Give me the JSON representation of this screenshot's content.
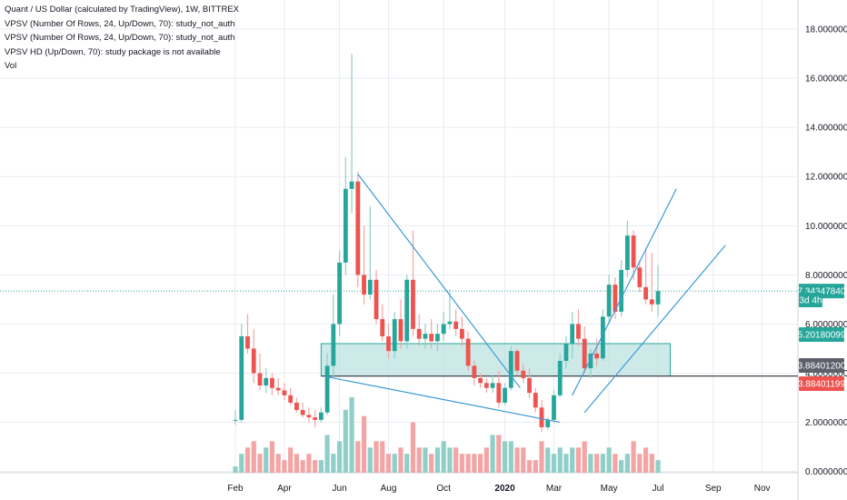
{
  "legend": {
    "title": "Quant / US Dollar (calculated by TradingView), 1W, BITTREX",
    "indicators": [
      "VPSV (Number Of Rows, 24, Up/Down, 70): study_not_auth",
      "VPSV (Number Of Rows, 24, Up/Down, 70): study_not_auth",
      "VPSV HD (Up/Down, 70): study package is not available",
      "Vol"
    ]
  },
  "colors": {
    "up": "#26a69a",
    "down": "#ef5350",
    "vol_up": "#8fcfc8",
    "vol_down": "#f2a5a4",
    "trendline": "#3d9ad6",
    "zone_fill": "#b2dfdb",
    "current_line": "#26a69a",
    "grid": "#e8ecf2",
    "support_line": "#434651"
  },
  "chart_data": {
    "type": "candlestick",
    "title": "Quant / US Dollar (calculated by TradingView), 1W, BITTREX",
    "y_ticks": [
      "18.00000000",
      "16.00000000",
      "14.00000000",
      "12.00000000",
      "10.00000000",
      "8.00000000",
      "6.00000000",
      "4.00000000",
      "2.00000000",
      "0.00000000"
    ],
    "y_tick_values": [
      18,
      16,
      14,
      12,
      10,
      8,
      6,
      4,
      2,
      0
    ],
    "ylim": [
      -0.8,
      18.6
    ],
    "x_ticks": [
      "Feb",
      "Apr",
      "Jun",
      "Aug",
      "Oct",
      "2020",
      "Mar",
      "May",
      "Jul",
      "Sep",
      "Nov"
    ],
    "x_tick_weeks": [
      0,
      8,
      17,
      25,
      34,
      44,
      52,
      61,
      69,
      78,
      86
    ],
    "x_tick_bold": [
      "2020"
    ],
    "first_week": "2019-02-11",
    "price_tags": [
      {
        "label": "7.34347840",
        "value": 7.3434784,
        "kind": "current"
      },
      {
        "label": "3d 4h",
        "value": 6.2,
        "kind": "countdown"
      },
      {
        "label": "5.20180099",
        "value": 5.20180099,
        "kind": "zone"
      },
      {
        "label": "3.88401200",
        "value": 3.884012,
        "kind": "support"
      },
      {
        "label": "3.88401199",
        "value": 3.88401199,
        "kind": "support_red"
      }
    ],
    "current_price": 7.3434784,
    "support_level": 3.884012,
    "zone": {
      "low": 3.884012,
      "high": 5.20180099,
      "from_week": 14,
      "to_week": 71
    },
    "trendlines": [
      {
        "from": [
          20,
          12.1
        ],
        "to": [
          46.5,
          3.4
        ]
      },
      {
        "from": [
          15,
          3.85
        ],
        "to": [
          53,
          2.0
        ]
      },
      {
        "from": [
          55,
          3.1
        ],
        "to": [
          72,
          11.5
        ]
      },
      {
        "from": [
          57,
          2.4
        ],
        "to": [
          80,
          9.2
        ]
      }
    ],
    "candles": [
      {
        "o": 2.1,
        "h": 2.5,
        "l": 1.9,
        "c": 2.1
      },
      {
        "o": 2.1,
        "h": 6.0,
        "l": 2.0,
        "c": 5.5
      },
      {
        "o": 5.5,
        "h": 6.4,
        "l": 4.8,
        "c": 5.0
      },
      {
        "o": 5.0,
        "h": 5.8,
        "l": 3.6,
        "c": 4.0
      },
      {
        "o": 4.0,
        "h": 4.8,
        "l": 3.3,
        "c": 3.5
      },
      {
        "o": 3.5,
        "h": 4.2,
        "l": 3.2,
        "c": 3.8
      },
      {
        "o": 3.8,
        "h": 4.0,
        "l": 3.1,
        "c": 3.4
      },
      {
        "o": 3.4,
        "h": 3.8,
        "l": 3.1,
        "c": 3.3
      },
      {
        "o": 3.3,
        "h": 3.6,
        "l": 2.9,
        "c": 3.1
      },
      {
        "o": 3.1,
        "h": 3.4,
        "l": 2.7,
        "c": 2.8
      },
      {
        "o": 2.8,
        "h": 3.0,
        "l": 2.4,
        "c": 2.5
      },
      {
        "o": 2.5,
        "h": 2.8,
        "l": 2.2,
        "c": 2.3
      },
      {
        "o": 2.3,
        "h": 2.6,
        "l": 2.0,
        "c": 2.2
      },
      {
        "o": 2.2,
        "h": 2.5,
        "l": 1.8,
        "c": 2.1
      },
      {
        "o": 2.1,
        "h": 2.6,
        "l": 2.0,
        "c": 2.4
      },
      {
        "o": 2.4,
        "h": 4.8,
        "l": 2.3,
        "c": 4.3
      },
      {
        "o": 4.3,
        "h": 7.2,
        "l": 3.8,
        "c": 6.0
      },
      {
        "o": 6.0,
        "h": 9.0,
        "l": 5.5,
        "c": 8.5
      },
      {
        "o": 8.5,
        "h": 12.8,
        "l": 8.0,
        "c": 11.5
      },
      {
        "o": 11.5,
        "h": 17.0,
        "l": 10.5,
        "c": 11.8
      },
      {
        "o": 11.8,
        "h": 12.2,
        "l": 7.5,
        "c": 8.0
      },
      {
        "o": 8.0,
        "h": 10.0,
        "l": 6.8,
        "c": 7.2
      },
      {
        "o": 7.2,
        "h": 10.8,
        "l": 7.0,
        "c": 7.8
      },
      {
        "o": 7.8,
        "h": 8.2,
        "l": 6.0,
        "c": 6.2
      },
      {
        "o": 6.2,
        "h": 6.8,
        "l": 5.3,
        "c": 5.5
      },
      {
        "o": 5.5,
        "h": 6.0,
        "l": 4.6,
        "c": 4.9
      },
      {
        "o": 4.9,
        "h": 6.5,
        "l": 4.6,
        "c": 6.2
      },
      {
        "o": 6.2,
        "h": 7.0,
        "l": 5.0,
        "c": 5.3
      },
      {
        "o": 5.3,
        "h": 8.0,
        "l": 5.0,
        "c": 7.8
      },
      {
        "o": 7.8,
        "h": 9.8,
        "l": 5.5,
        "c": 5.8
      },
      {
        "o": 5.8,
        "h": 6.4,
        "l": 5.1,
        "c": 5.4
      },
      {
        "o": 5.4,
        "h": 6.0,
        "l": 5.0,
        "c": 5.6
      },
      {
        "o": 5.6,
        "h": 6.2,
        "l": 5.0,
        "c": 5.3
      },
      {
        "o": 5.3,
        "h": 6.0,
        "l": 4.9,
        "c": 5.6
      },
      {
        "o": 5.6,
        "h": 6.5,
        "l": 5.3,
        "c": 6.0
      },
      {
        "o": 6.0,
        "h": 7.4,
        "l": 5.8,
        "c": 6.1
      },
      {
        "o": 6.1,
        "h": 6.6,
        "l": 5.5,
        "c": 5.8
      },
      {
        "o": 5.8,
        "h": 6.3,
        "l": 5.1,
        "c": 5.4
      },
      {
        "o": 5.4,
        "h": 5.7,
        "l": 4.1,
        "c": 4.3
      },
      {
        "o": 4.3,
        "h": 4.5,
        "l": 3.5,
        "c": 3.8
      },
      {
        "o": 3.8,
        "h": 4.0,
        "l": 3.4,
        "c": 3.6
      },
      {
        "o": 3.6,
        "h": 3.8,
        "l": 3.2,
        "c": 3.4
      },
      {
        "o": 3.4,
        "h": 3.9,
        "l": 3.2,
        "c": 3.6
      },
      {
        "o": 3.6,
        "h": 4.1,
        "l": 2.6,
        "c": 2.8
      },
      {
        "o": 2.8,
        "h": 3.6,
        "l": 2.7,
        "c": 3.4
      },
      {
        "o": 3.4,
        "h": 5.1,
        "l": 3.3,
        "c": 4.9
      },
      {
        "o": 4.9,
        "h": 5.0,
        "l": 3.9,
        "c": 4.1
      },
      {
        "o": 4.1,
        "h": 4.4,
        "l": 3.6,
        "c": 3.8
      },
      {
        "o": 3.8,
        "h": 4.2,
        "l": 3.0,
        "c": 3.2
      },
      {
        "o": 3.2,
        "h": 3.4,
        "l": 2.4,
        "c": 2.6
      },
      {
        "o": 2.6,
        "h": 2.9,
        "l": 1.6,
        "c": 1.8
      },
      {
        "o": 1.8,
        "h": 2.2,
        "l": 1.7,
        "c": 2.1
      },
      {
        "o": 2.1,
        "h": 3.3,
        "l": 2.0,
        "c": 3.1
      },
      {
        "o": 3.1,
        "h": 4.8,
        "l": 3.0,
        "c": 4.5
      },
      {
        "o": 4.5,
        "h": 5.5,
        "l": 4.2,
        "c": 5.2
      },
      {
        "o": 5.2,
        "h": 6.5,
        "l": 4.6,
        "c": 6.0
      },
      {
        "o": 6.0,
        "h": 6.6,
        "l": 5.1,
        "c": 5.4
      },
      {
        "o": 5.4,
        "h": 5.9,
        "l": 4.0,
        "c": 4.2
      },
      {
        "o": 4.2,
        "h": 5.0,
        "l": 3.8,
        "c": 4.8
      },
      {
        "o": 4.8,
        "h": 5.4,
        "l": 4.3,
        "c": 4.6
      },
      {
        "o": 4.6,
        "h": 6.6,
        "l": 4.5,
        "c": 6.3
      },
      {
        "o": 6.3,
        "h": 8.0,
        "l": 6.0,
        "c": 7.6
      },
      {
        "o": 7.6,
        "h": 7.9,
        "l": 6.2,
        "c": 6.5
      },
      {
        "o": 6.5,
        "h": 8.6,
        "l": 6.3,
        "c": 8.2
      },
      {
        "o": 8.2,
        "h": 10.2,
        "l": 7.9,
        "c": 9.6
      },
      {
        "o": 9.6,
        "h": 9.8,
        "l": 7.8,
        "c": 8.3
      },
      {
        "o": 8.3,
        "h": 8.6,
        "l": 7.3,
        "c": 7.5
      },
      {
        "o": 7.5,
        "h": 9.0,
        "l": 6.8,
        "c": 7.0
      },
      {
        "o": 7.0,
        "h": 8.9,
        "l": 6.5,
        "c": 6.8
      },
      {
        "o": 6.8,
        "h": 8.4,
        "l": 6.3,
        "c": 7.34
      }
    ],
    "volume_range": [
      0,
      13
    ],
    "volumes": [
      1,
      3,
      4,
      5,
      3,
      4,
      5,
      3,
      2,
      4,
      3,
      2,
      3,
      2,
      2,
      6,
      3,
      5,
      10,
      12,
      5,
      9,
      4,
      5,
      5,
      3,
      3,
      4,
      3,
      8,
      4,
      4,
      3,
      4,
      5,
      4,
      4,
      3,
      3,
      3,
      3,
      4,
      6,
      6,
      5,
      5,
      4,
      4,
      2,
      2,
      5,
      4,
      3,
      4,
      3,
      4,
      4,
      5,
      3,
      3,
      3,
      4,
      3,
      2,
      3,
      5,
      3,
      4,
      3,
      2
    ]
  }
}
